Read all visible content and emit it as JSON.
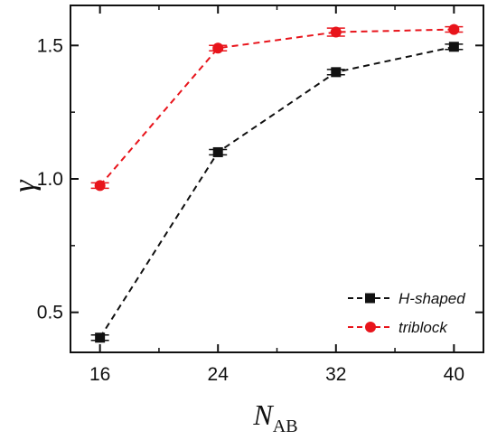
{
  "chart_data": {
    "type": "line",
    "xlabel": "N",
    "xlabel_subscript": "AB",
    "ylabel": "γ",
    "x": [
      16,
      24,
      32,
      40
    ],
    "xlim": [
      14,
      42
    ],
    "ylim": [
      0.35,
      1.65
    ],
    "xticks": [
      16,
      24,
      32,
      40
    ],
    "yticks": [
      0.5,
      1.0,
      1.5
    ],
    "ytick_labels": [
      "0.5",
      "1.0",
      "1.5"
    ],
    "grid": false,
    "legend_position": "bottom-right",
    "series": [
      {
        "name": "H-shaped",
        "color": "#111111",
        "marker": "square",
        "line": "dashed",
        "y": [
          0.405,
          1.1,
          1.4,
          1.495
        ],
        "yerr": [
          0.01,
          0.01,
          0.01,
          0.01
        ]
      },
      {
        "name": "triblock",
        "color": "#e8141b",
        "marker": "circle",
        "line": "dashed",
        "y": [
          0.975,
          1.49,
          1.55,
          1.56
        ],
        "yerr": [
          0.01,
          0.01,
          0.015,
          0.01
        ]
      }
    ]
  }
}
